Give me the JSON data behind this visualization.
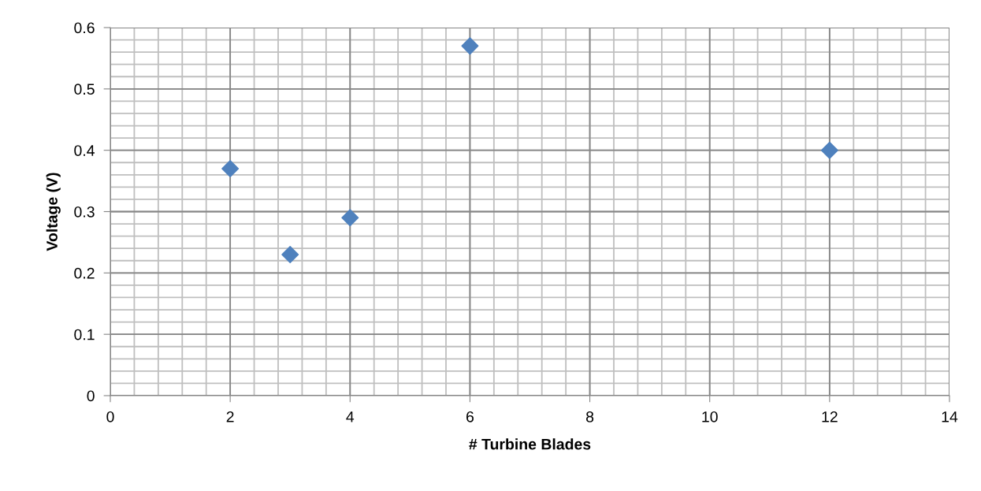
{
  "chart_data": {
    "type": "scatter",
    "xlabel": "# Turbine Blades",
    "ylabel": "Voltage (V)",
    "x": [
      2,
      3,
      4,
      6,
      12
    ],
    "series": [
      {
        "color": "#4f81bd",
        "values": [
          0.37,
          0.23,
          0.29,
          0.57,
          0.4
        ]
      }
    ],
    "marker": "diamond",
    "xlim": [
      0,
      14
    ],
    "xticks": [
      0,
      2,
      4,
      6,
      8,
      10,
      12,
      14
    ],
    "ylim": [
      0,
      0.6
    ],
    "yticks": [
      0,
      0.1,
      0.2,
      0.3,
      0.4,
      0.5,
      0.6
    ],
    "grid": true,
    "legend": false
  }
}
